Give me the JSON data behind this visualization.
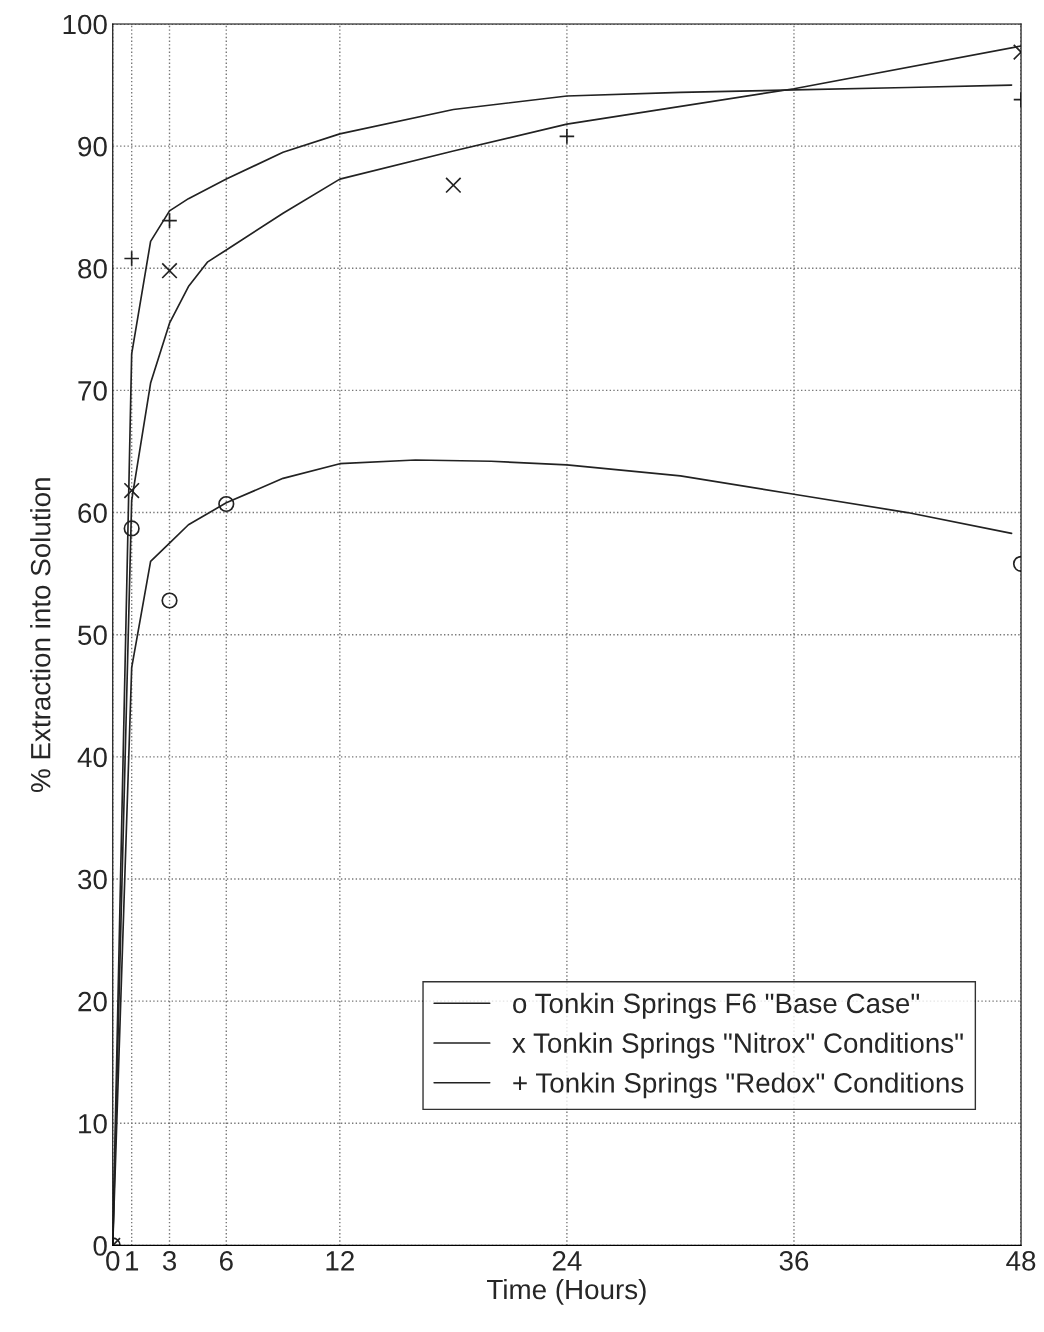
{
  "chart_data": {
    "type": "line",
    "xlabel": "Time (Hours)",
    "ylabel": "% Extraction into Solution",
    "xlim": [
      0,
      48
    ],
    "ylim": [
      0,
      100
    ],
    "xticks": [
      0,
      1,
      3,
      6,
      12,
      24,
      36,
      48
    ],
    "yticks": [
      0,
      10,
      20,
      30,
      40,
      50,
      60,
      70,
      80,
      90,
      100
    ],
    "grid": true,
    "legend": "bottom right",
    "series": [
      {
        "name": "o Tonkin Springs F6 \"Base Case\"",
        "color": "#222222",
        "marker": "none",
        "x": [
          0,
          1,
          2,
          3,
          4,
          6,
          9,
          12,
          16,
          20,
          24,
          30,
          36,
          42,
          47.5
        ],
        "values": [
          0,
          47.3,
          56,
          57.5,
          59,
          60.8,
          62.8,
          64,
          64.3,
          64.2,
          63.9,
          63,
          61.5,
          60,
          58.3
        ]
      },
      {
        "name": "x Tonkin Springs \"Nitrox\" Conditions\"",
        "color": "#222222",
        "marker": "none",
        "x": [
          0,
          1,
          2,
          3,
          4,
          5,
          6,
          9,
          12,
          18,
          24,
          36,
          48
        ],
        "values": [
          0,
          61,
          70.6,
          75.5,
          78.5,
          80.5,
          81.5,
          84.5,
          87.3,
          89.6,
          91.8,
          94.7,
          98.2
        ]
      },
      {
        "name": "+ Tonkin Springs \"Redox\" Conditions",
        "color": "#222222",
        "marker": "none",
        "x": [
          0,
          1,
          2,
          3,
          4,
          6,
          9,
          12,
          18,
          24,
          30,
          36,
          42,
          47.5
        ],
        "values": [
          0,
          73,
          82.2,
          84.7,
          85.7,
          87.3,
          89.5,
          91,
          93,
          94.1,
          94.4,
          94.6,
          94.8,
          95
        ]
      },
      {
        "color": "#222222",
        "type": "scatter",
        "marker": "circle",
        "x": [
          0,
          1,
          3,
          6,
          48
        ],
        "values": [
          0,
          58.7,
          52.8,
          60.7,
          55.8
        ]
      },
      {
        "color": "#222222",
        "type": "scatter",
        "marker": "cross",
        "x": [
          0,
          1,
          3,
          18,
          48
        ],
        "values": [
          0,
          61.8,
          79.8,
          86.8,
          97.7
        ]
      },
      {
        "color": "#222222",
        "type": "scatter",
        "marker": "plus",
        "x": [
          0,
          1,
          3,
          24,
          48
        ],
        "values": [
          0,
          80.8,
          83.9,
          90.8,
          93.8
        ]
      }
    ]
  }
}
